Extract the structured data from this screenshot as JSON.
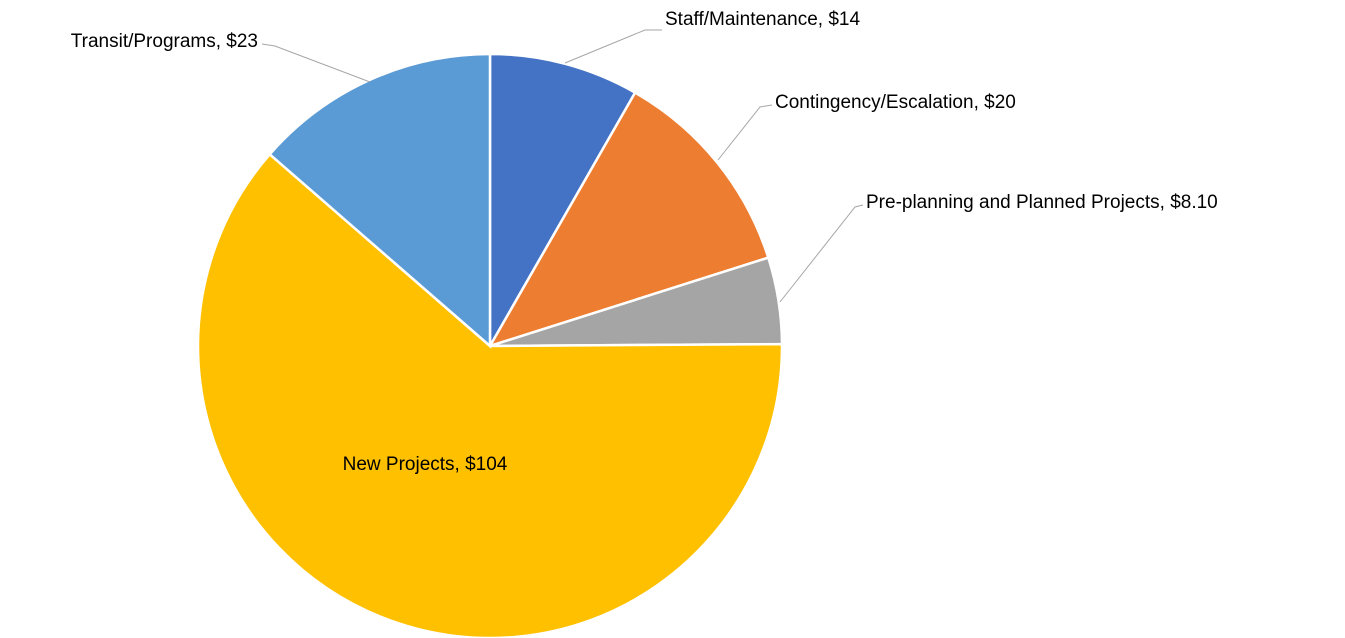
{
  "chart_data": {
    "type": "pie",
    "values": [
      14,
      20,
      8.1,
      104,
      23
    ],
    "value_labels": [
      "Staff/Maintenance, $14",
      "Contingency/Escalation, $20",
      "Pre-planning and Planned Projects, $8.10",
      "New Projects, $104",
      "Transit/Programs, $23"
    ],
    "colors": [
      "#4472c4",
      "#ed7d31",
      "#a5a5a5",
      "#ffc000",
      "#5b9bd5"
    ]
  }
}
